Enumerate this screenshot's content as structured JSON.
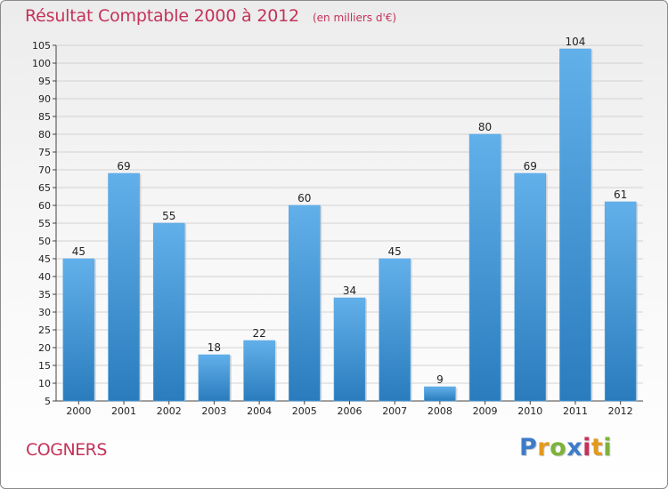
{
  "chart_data": {
    "type": "bar",
    "title": "Résultat Comptable 2000 à 2012",
    "subtitle": "(en milliers d'€)",
    "categories": [
      "2000",
      "2001",
      "2002",
      "2003",
      "2004",
      "2005",
      "2006",
      "2007",
      "2008",
      "2009",
      "2010",
      "2011",
      "2012"
    ],
    "values": [
      45,
      69,
      55,
      18,
      22,
      60,
      34,
      45,
      9,
      80,
      69,
      104,
      61
    ],
    "ylim": [
      5,
      105
    ],
    "yticks": [
      5,
      10,
      15,
      20,
      25,
      30,
      35,
      40,
      45,
      50,
      55,
      60,
      65,
      70,
      75,
      80,
      85,
      90,
      95,
      100,
      105
    ],
    "xlabel": "",
    "ylabel": "",
    "grid": true,
    "bar_color_top": "#62b0ea",
    "bar_color_bottom": "#2a7cbd"
  },
  "footer": {
    "location": "COGNERS",
    "brand": "Proxiti",
    "brand_letters": [
      {
        "char": "P",
        "color": "#3d7cc9"
      },
      {
        "char": "r",
        "color": "#e39a1c"
      },
      {
        "char": "o",
        "color": "#7cb23a"
      },
      {
        "char": "x",
        "color": "#3d7cc9"
      },
      {
        "char": "i",
        "color": "#c4325a"
      },
      {
        "char": "t",
        "color": "#e39a1c"
      },
      {
        "char": "i",
        "color": "#7cb23a"
      }
    ]
  },
  "colors": {
    "title": "#c4325a",
    "text": "#222222",
    "grid": "#d2d2d2"
  }
}
